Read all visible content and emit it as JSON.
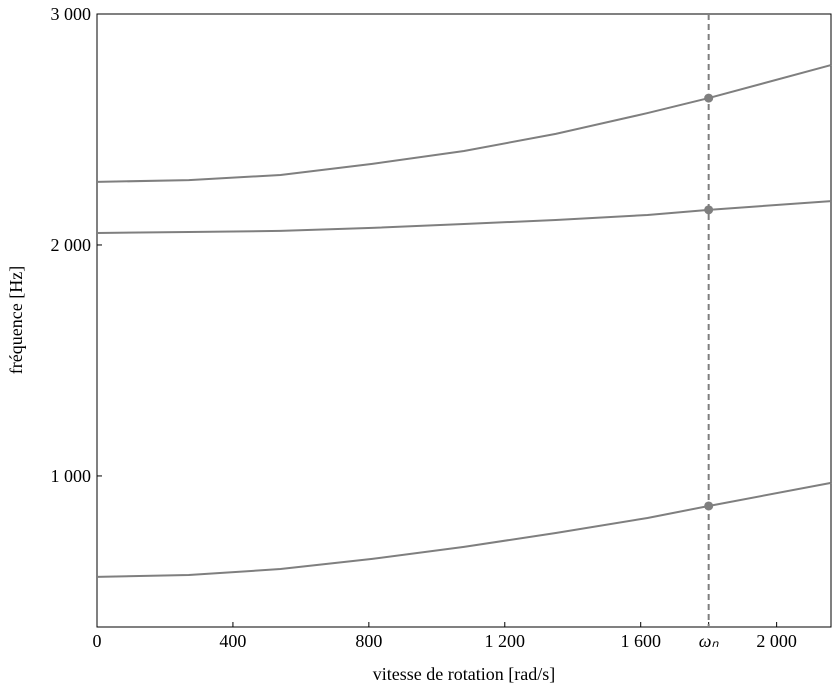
{
  "chart_data": {
    "type": "line",
    "x_label": "vitesse de rotation [rad/s]",
    "y_label": "fréquence [Hz]",
    "x": [
      0,
      270,
      540,
      810,
      1080,
      1350,
      1620,
      1800,
      2160
    ],
    "series": [
      {
        "color": "#7f7f7f",
        "values": [
          563,
          571,
          597,
          641,
          693,
          753,
          818,
          870,
          970
        ]
      },
      {
        "color": "#7f7f7f",
        "values": [
          2052,
          2056,
          2061,
          2074,
          2091,
          2108,
          2130,
          2152,
          2190
        ]
      },
      {
        "color": "#7f7f7f",
        "values": [
          2273,
          2281,
          2303,
          2351,
          2407,
          2481,
          2571,
          2636,
          2779
        ]
      }
    ],
    "vline": {
      "x": 1800,
      "color": "#7f7f7f"
    },
    "xlim": [
      0,
      2160
    ],
    "ylim": [
      346,
      3000
    ],
    "xticks": [
      0,
      400,
      800,
      {
        "value": 1200,
        "label": "1 200"
      },
      {
        "value": 1600,
        "label": "1 600"
      },
      {
        "value": 1800,
        "label": "ωₙ"
      },
      {
        "value": 2000,
        "label": "2 000"
      }
    ],
    "yticks": [
      {
        "value": 1000,
        "label": "1 000"
      },
      {
        "value": 2000,
        "label": "2 000"
      },
      {
        "value": 3000,
        "label": "3 000"
      }
    ]
  }
}
